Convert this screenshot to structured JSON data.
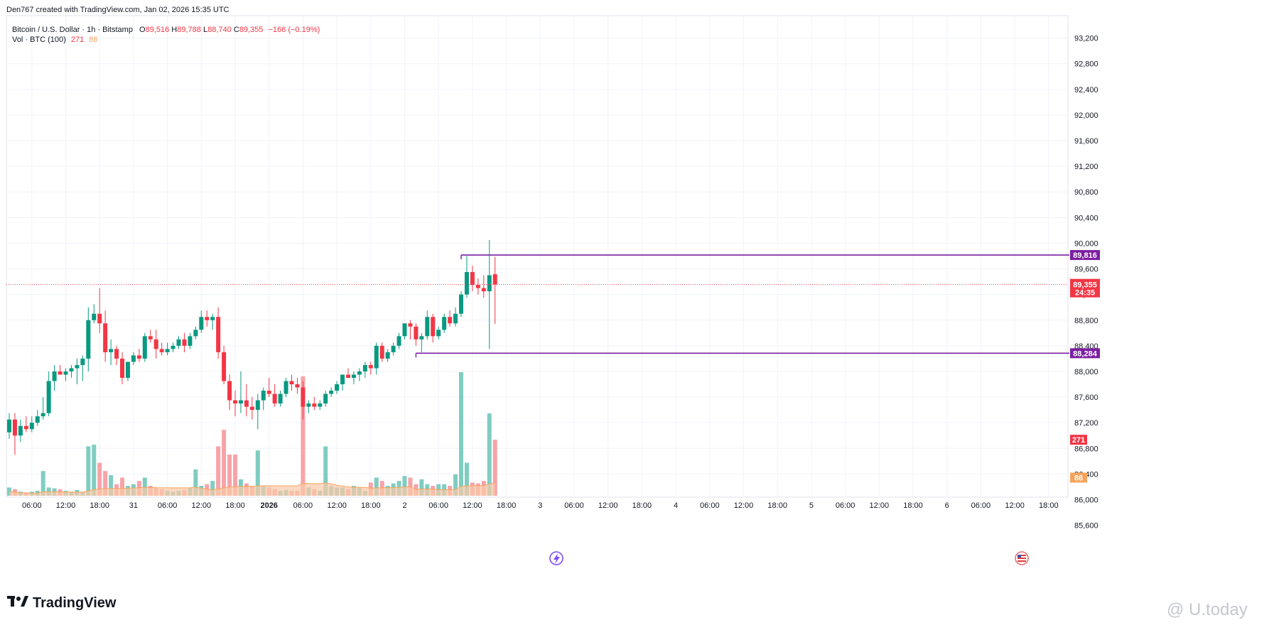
{
  "header": {
    "created_by": "Den767 created with TradingView.com, Jan 02, 2026 15:35 UTC"
  },
  "legend": {
    "symbol": "Bitcoin / U.S. Dollar · 1h · Bitstamp",
    "o_label": "O",
    "o_value": "89,516",
    "h_label": "H",
    "h_value": "89,788",
    "l_label": "L",
    "l_value": "88,740",
    "c_label": "C",
    "c_value": "89,355",
    "change": "−166 (−0.19%)",
    "vol_label": "Vol · BTC (100)",
    "vol_a": "271",
    "vol_b": "86"
  },
  "branding": {
    "logo_text": "TradingView",
    "watermark": "@ U.today"
  },
  "colors": {
    "up": "#089981",
    "down": "#f23645",
    "vol_up": "#7fcdc0",
    "vol_down": "#f7a3a8",
    "level_line": "#7b1fa2",
    "price_line": "#f23645",
    "vol_ma_fill": "#f9c9a8",
    "vol_ma_line": "#f7a35c",
    "grid": "#f0f3fa"
  },
  "chart_data": {
    "type": "candlestick",
    "y_ticks": [
      "93,200",
      "92,800",
      "92,400",
      "92,000",
      "91,600",
      "91,200",
      "90,800",
      "90,400",
      "90,000",
      "89,600",
      "89,200",
      "88,800",
      "88,400",
      "88,000",
      "87,600",
      "87,200",
      "86,800",
      "86,400",
      "86,000",
      "85,600"
    ],
    "ylim": [
      85500,
      93400
    ],
    "x_ticks": [
      {
        "label": "06:00",
        "idx": 4
      },
      {
        "label": "12:00",
        "idx": 10
      },
      {
        "label": "18:00",
        "idx": 16
      },
      {
        "label": "31",
        "idx": 22
      },
      {
        "label": "06:00",
        "idx": 28
      },
      {
        "label": "12:00",
        "idx": 34
      },
      {
        "label": "18:00",
        "idx": 40
      },
      {
        "label": "2026",
        "idx": 46,
        "bold": true
      },
      {
        "label": "06:00",
        "idx": 52
      },
      {
        "label": "12:00",
        "idx": 58
      },
      {
        "label": "18:00",
        "idx": 64
      },
      {
        "label": "2",
        "idx": 70
      },
      {
        "label": "06:00",
        "idx": 76
      },
      {
        "label": "12:00",
        "idx": 82
      },
      {
        "label": "18:00",
        "idx": 88
      },
      {
        "label": "3",
        "idx": 94
      },
      {
        "label": "06:00",
        "idx": 100
      },
      {
        "label": "12:00",
        "idx": 106
      },
      {
        "label": "18:00",
        "idx": 112
      },
      {
        "label": "4",
        "idx": 118
      },
      {
        "label": "06:00",
        "idx": 124
      },
      {
        "label": "12:00",
        "idx": 130
      },
      {
        "label": "18:00",
        "idx": 136
      },
      {
        "label": "5",
        "idx": 142
      },
      {
        "label": "06:00",
        "idx": 148
      },
      {
        "label": "12:00",
        "idx": 154
      },
      {
        "label": "18:00",
        "idx": 160
      },
      {
        "label": "6",
        "idx": 166
      },
      {
        "label": "06:00",
        "idx": 172
      },
      {
        "label": "12:00",
        "idx": 178
      },
      {
        "label": "18:00",
        "idx": 184
      }
    ],
    "candles": [
      {
        "o": 87050,
        "h": 87350,
        "l": 86950,
        "c": 87250,
        "v": 0.1
      },
      {
        "o": 87250,
        "h": 87350,
        "l": 86700,
        "c": 87000,
        "v": 0.08
      },
      {
        "o": 87000,
        "h": 87250,
        "l": 86900,
        "c": 87150,
        "v": 0.05
      },
      {
        "o": 87150,
        "h": 87300,
        "l": 87050,
        "c": 87100,
        "v": 0.04
      },
      {
        "o": 87100,
        "h": 87300,
        "l": 87050,
        "c": 87200,
        "v": 0.05
      },
      {
        "o": 87200,
        "h": 87400,
        "l": 87150,
        "c": 87300,
        "v": 0.06
      },
      {
        "o": 87300,
        "h": 87600,
        "l": 87250,
        "c": 87350,
        "v": 0.3
      },
      {
        "o": 87350,
        "h": 88000,
        "l": 87300,
        "c": 87850,
        "v": 0.1
      },
      {
        "o": 87850,
        "h": 88100,
        "l": 87700,
        "c": 88000,
        "v": 0.09
      },
      {
        "o": 88000,
        "h": 88100,
        "l": 87950,
        "c": 87950,
        "v": 0.08
      },
      {
        "o": 87950,
        "h": 88050,
        "l": 87850,
        "c": 88000,
        "v": 0.06
      },
      {
        "o": 88000,
        "h": 88100,
        "l": 87900,
        "c": 88050,
        "v": 0.05
      },
      {
        "o": 88050,
        "h": 88200,
        "l": 87800,
        "c": 88100,
        "v": 0.07
      },
      {
        "o": 88100,
        "h": 88250,
        "l": 87850,
        "c": 88200,
        "v": 0.05
      },
      {
        "o": 88200,
        "h": 89000,
        "l": 88000,
        "c": 88800,
        "v": 0.6
      },
      {
        "o": 88800,
        "h": 89050,
        "l": 88750,
        "c": 88900,
        "v": 0.62
      },
      {
        "o": 88900,
        "h": 89300,
        "l": 88600,
        "c": 88750,
        "v": 0.4
      },
      {
        "o": 88750,
        "h": 88950,
        "l": 88150,
        "c": 88300,
        "v": 0.3
      },
      {
        "o": 88300,
        "h": 88500,
        "l": 88100,
        "c": 88350,
        "v": 0.25
      },
      {
        "o": 88350,
        "h": 88400,
        "l": 88100,
        "c": 88200,
        "v": 0.14
      },
      {
        "o": 88200,
        "h": 88300,
        "l": 87800,
        "c": 87900,
        "v": 0.22
      },
      {
        "o": 87900,
        "h": 88150,
        "l": 87850,
        "c": 88150,
        "v": 0.12
      },
      {
        "o": 88150,
        "h": 88300,
        "l": 88100,
        "c": 88250,
        "v": 0.14
      },
      {
        "o": 88250,
        "h": 88350,
        "l": 88150,
        "c": 88200,
        "v": 0.18
      },
      {
        "o": 88200,
        "h": 88600,
        "l": 88150,
        "c": 88550,
        "v": 0.22
      },
      {
        "o": 88550,
        "h": 88650,
        "l": 88450,
        "c": 88500,
        "v": 0.12
      },
      {
        "o": 88500,
        "h": 88650,
        "l": 88200,
        "c": 88350,
        "v": 0.1
      },
      {
        "o": 88350,
        "h": 88450,
        "l": 88250,
        "c": 88300,
        "v": 0.08
      },
      {
        "o": 88300,
        "h": 88450,
        "l": 88250,
        "c": 88350,
        "v": 0.06
      },
      {
        "o": 88350,
        "h": 88450,
        "l": 88300,
        "c": 88400,
        "v": 0.05
      },
      {
        "o": 88400,
        "h": 88550,
        "l": 88350,
        "c": 88500,
        "v": 0.06
      },
      {
        "o": 88500,
        "h": 88600,
        "l": 88300,
        "c": 88400,
        "v": 0.07
      },
      {
        "o": 88400,
        "h": 88600,
        "l": 88350,
        "c": 88550,
        "v": 0.1
      },
      {
        "o": 88550,
        "h": 88700,
        "l": 88500,
        "c": 88650,
        "v": 0.32
      },
      {
        "o": 88650,
        "h": 88950,
        "l": 88600,
        "c": 88850,
        "v": 0.12
      },
      {
        "o": 88850,
        "h": 88950,
        "l": 88700,
        "c": 88800,
        "v": 0.14
      },
      {
        "o": 88800,
        "h": 88900,
        "l": 88650,
        "c": 88850,
        "v": 0.18
      },
      {
        "o": 88850,
        "h": 89000,
        "l": 88200,
        "c": 88300,
        "v": 0.6
      },
      {
        "o": 88300,
        "h": 88400,
        "l": 87800,
        "c": 87850,
        "v": 0.8
      },
      {
        "o": 87850,
        "h": 87950,
        "l": 87400,
        "c": 87550,
        "v": 0.5
      },
      {
        "o": 87550,
        "h": 87700,
        "l": 87300,
        "c": 87500,
        "v": 0.5
      },
      {
        "o": 87500,
        "h": 88000,
        "l": 87350,
        "c": 87550,
        "v": 0.2
      },
      {
        "o": 87550,
        "h": 87800,
        "l": 87300,
        "c": 87450,
        "v": 0.15
      },
      {
        "o": 87450,
        "h": 87600,
        "l": 87250,
        "c": 87400,
        "v": 0.12
      },
      {
        "o": 87400,
        "h": 87650,
        "l": 87100,
        "c": 87550,
        "v": 0.55
      },
      {
        "o": 87550,
        "h": 87750,
        "l": 87400,
        "c": 87700,
        "v": 0.12
      },
      {
        "o": 87700,
        "h": 87900,
        "l": 87600,
        "c": 87650,
        "v": 0.1
      },
      {
        "o": 87650,
        "h": 87800,
        "l": 87450,
        "c": 87500,
        "v": 0.08
      },
      {
        "o": 87500,
        "h": 87700,
        "l": 87450,
        "c": 87650,
        "v": 0.06
      },
      {
        "o": 87650,
        "h": 87900,
        "l": 87600,
        "c": 87850,
        "v": 0.07
      },
      {
        "o": 87850,
        "h": 87950,
        "l": 87700,
        "c": 87800,
        "v": 0.06
      },
      {
        "o": 87800,
        "h": 87900,
        "l": 87650,
        "c": 87750,
        "v": 0.06
      },
      {
        "o": 87750,
        "h": 87850,
        "l": 87250,
        "c": 87450,
        "v": 1.45
      },
      {
        "o": 87450,
        "h": 87550,
        "l": 87350,
        "c": 87500,
        "v": 0.1
      },
      {
        "o": 87500,
        "h": 87600,
        "l": 87400,
        "c": 87450,
        "v": 0.08
      },
      {
        "o": 87450,
        "h": 87550,
        "l": 87400,
        "c": 87500,
        "v": 0.06
      },
      {
        "o": 87500,
        "h": 87700,
        "l": 87450,
        "c": 87650,
        "v": 0.6
      },
      {
        "o": 87650,
        "h": 87750,
        "l": 87600,
        "c": 87700,
        "v": 0.12
      },
      {
        "o": 87700,
        "h": 87850,
        "l": 87650,
        "c": 87800,
        "v": 0.1
      },
      {
        "o": 87800,
        "h": 87950,
        "l": 87700,
        "c": 87950,
        "v": 0.1
      },
      {
        "o": 87950,
        "h": 88050,
        "l": 87900,
        "c": 87900,
        "v": 0.08
      },
      {
        "o": 87900,
        "h": 88000,
        "l": 87800,
        "c": 87950,
        "v": 0.12
      },
      {
        "o": 87950,
        "h": 88050,
        "l": 87850,
        "c": 88000,
        "v": 0.1
      },
      {
        "o": 88000,
        "h": 88150,
        "l": 87900,
        "c": 88100,
        "v": 0.06
      },
      {
        "o": 88100,
        "h": 88150,
        "l": 87950,
        "c": 88050,
        "v": 0.16
      },
      {
        "o": 88050,
        "h": 88450,
        "l": 87950,
        "c": 88400,
        "v": 0.22
      },
      {
        "o": 88400,
        "h": 88450,
        "l": 88150,
        "c": 88200,
        "v": 0.18
      },
      {
        "o": 88200,
        "h": 88350,
        "l": 88150,
        "c": 88300,
        "v": 0.12
      },
      {
        "o": 88300,
        "h": 88450,
        "l": 88250,
        "c": 88400,
        "v": 0.15
      },
      {
        "o": 88400,
        "h": 88600,
        "l": 88350,
        "c": 88550,
        "v": 0.18
      },
      {
        "o": 88550,
        "h": 88750,
        "l": 88500,
        "c": 88750,
        "v": 0.24
      },
      {
        "o": 88750,
        "h": 88800,
        "l": 88500,
        "c": 88700,
        "v": 0.22
      },
      {
        "o": 88700,
        "h": 88750,
        "l": 88400,
        "c": 88500,
        "v": 0.14
      },
      {
        "o": 88500,
        "h": 88600,
        "l": 88300,
        "c": 88550,
        "v": 0.2
      },
      {
        "o": 88550,
        "h": 88950,
        "l": 88500,
        "c": 88850,
        "v": 0.14
      },
      {
        "o": 88850,
        "h": 88900,
        "l": 88450,
        "c": 88550,
        "v": 0.12
      },
      {
        "o": 88550,
        "h": 88700,
        "l": 88500,
        "c": 88650,
        "v": 0.14
      },
      {
        "o": 88650,
        "h": 88900,
        "l": 88600,
        "c": 88850,
        "v": 0.14
      },
      {
        "o": 88850,
        "h": 88950,
        "l": 88700,
        "c": 88750,
        "v": 0.12
      },
      {
        "o": 88750,
        "h": 89000,
        "l": 88700,
        "c": 88900,
        "v": 0.26
      },
      {
        "o": 88900,
        "h": 89250,
        "l": 88850,
        "c": 89200,
        "v": 1.5
      },
      {
        "o": 89200,
        "h": 89800,
        "l": 89150,
        "c": 89550,
        "v": 0.4
      },
      {
        "o": 89550,
        "h": 89650,
        "l": 89250,
        "c": 89350,
        "v": 0.16
      },
      {
        "o": 89350,
        "h": 89450,
        "l": 89200,
        "c": 89300,
        "v": 0.15
      },
      {
        "o": 89300,
        "h": 89500,
        "l": 89150,
        "c": 89250,
        "v": 0.18
      },
      {
        "o": 89250,
        "h": 90050,
        "l": 88350,
        "c": 89500,
        "v": 1.0
      },
      {
        "o": 89516,
        "h": 89788,
        "l": 88740,
        "c": 89355,
        "v": 0.68
      }
    ],
    "levels": [
      {
        "label": "89,816",
        "value": 89816,
        "from_idx": 80
      },
      {
        "label": "88,284",
        "value": 88284,
        "from_idx": 72
      }
    ],
    "last_price": {
      "label": "89,355",
      "value": 89355,
      "countdown": "24:35"
    },
    "volume_badges": [
      {
        "label": "271",
        "value": 0.68,
        "color": "#f23645"
      },
      {
        "label": "86",
        "value": 0.22,
        "color": "#f7a35c"
      }
    ]
  }
}
